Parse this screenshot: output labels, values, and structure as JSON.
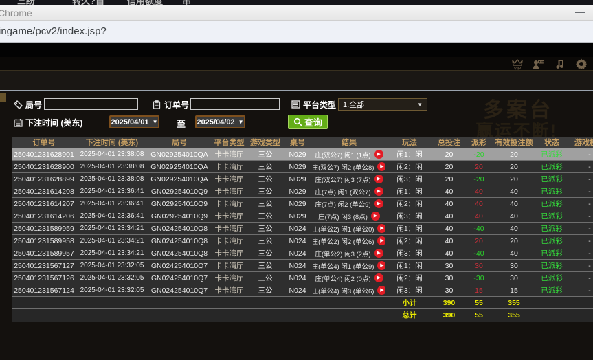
{
  "background_window": {
    "fragments": [
      "三纷",
      "转久?自",
      "信用额度",
      "串"
    ]
  },
  "titlebar": {
    "title": "Chrome",
    "minimize_glyph": "—"
  },
  "url_bar": {
    "url": "ingame/pcv2/index.jsp?"
  },
  "toolbar": {
    "icons": [
      "vip-crown",
      "chat-person",
      "music-note",
      "settings-gear"
    ],
    "vip_label": "VIP"
  },
  "watermarks": {
    "line1": "多案台",
    "line2": "赢运不断!"
  },
  "filters": {
    "round_label": "局号",
    "round_value": "",
    "order_label": "订单号",
    "order_value": "",
    "platform_label": "平台类型",
    "platform_value": "1.全部",
    "platform_arrow": "▼",
    "bet_time_label": "下注时间 (美东)",
    "date_from": "2025/04/01",
    "to_label": "至",
    "date_to": "2025/04/02",
    "date_arrow": "▼",
    "query_label": "查询"
  },
  "table": {
    "headers": [
      "订单号",
      "下注时间 (美东)",
      "局号",
      "平台类型",
      "游戏类型",
      "桌号",
      "结果",
      "玩法",
      "总投注",
      "派彩",
      "有效投注额",
      "状态",
      "游戏模式"
    ],
    "play_glyph": "▶",
    "rows": [
      {
        "selected": true,
        "order": "250401231628901",
        "time": "2025-04-01 23:38:08",
        "round": "GN029254010QA",
        "platform": "卡卡湾厅",
        "game_type": "三公",
        "table_no": "N029",
        "result": "庄(双公7) 闲1 (1点)",
        "play": "闲1：闲",
        "total_bet": "20",
        "payout": "-20",
        "valid_bet": "20",
        "status": "已派彩",
        "mode": "-"
      },
      {
        "selected": false,
        "order": "250401231628900",
        "time": "2025-04-01 23:38:08",
        "round": "GN029254010QA",
        "platform": "卡卡湾厅",
        "game_type": "三公",
        "table_no": "N029",
        "result": "庄(双公7) 闲2 (单公8)",
        "play": "闲2：闲",
        "total_bet": "20",
        "payout": "20",
        "valid_bet": "20",
        "status": "已派彩",
        "mode": "-"
      },
      {
        "selected": false,
        "order": "250401231628899",
        "time": "2025-04-01 23:38:08",
        "round": "GN029254010QA",
        "platform": "卡卡湾厅",
        "game_type": "三公",
        "table_no": "N029",
        "result": "庄(双公7) 闲3 (7点)",
        "play": "闲3：闲",
        "total_bet": "20",
        "payout": "-20",
        "valid_bet": "20",
        "status": "已派彩",
        "mode": "-"
      },
      {
        "selected": false,
        "order": "250401231614208",
        "time": "2025-04-01 23:36:41",
        "round": "GN029254010Q9",
        "platform": "卡卡湾厅",
        "game_type": "三公",
        "table_no": "N029",
        "result": "庄(7点) 闲1 (双公7)",
        "play": "闲1：闲",
        "total_bet": "40",
        "payout": "40",
        "valid_bet": "40",
        "status": "已派彩",
        "mode": "-"
      },
      {
        "selected": false,
        "order": "250401231614207",
        "time": "2025-04-01 23:36:41",
        "round": "GN029254010Q9",
        "platform": "卡卡湾厅",
        "game_type": "三公",
        "table_no": "N029",
        "result": "庄(7点) 闲2 (单公9)",
        "play": "闲2：闲",
        "total_bet": "40",
        "payout": "40",
        "valid_bet": "40",
        "status": "已派彩",
        "mode": "-"
      },
      {
        "selected": false,
        "order": "250401231614206",
        "time": "2025-04-01 23:36:41",
        "round": "GN029254010Q9",
        "platform": "卡卡湾厅",
        "game_type": "三公",
        "table_no": "N029",
        "result": "庄(7点) 闲3 (8点)",
        "play": "闲3：闲",
        "total_bet": "40",
        "payout": "40",
        "valid_bet": "40",
        "status": "已派彩",
        "mode": "-"
      },
      {
        "selected": false,
        "order": "250401231589959",
        "time": "2025-04-01 23:34:21",
        "round": "GN024254010Q8",
        "platform": "卡卡湾厅",
        "game_type": "三公",
        "table_no": "N024",
        "result": "庄(单公2) 闲1 (单公0)",
        "play": "闲1：闲",
        "total_bet": "40",
        "payout": "-40",
        "valid_bet": "40",
        "status": "已派彩",
        "mode": "-"
      },
      {
        "selected": false,
        "order": "250401231589958",
        "time": "2025-04-01 23:34:21",
        "round": "GN024254010Q8",
        "platform": "卡卡湾厅",
        "game_type": "三公",
        "table_no": "N024",
        "result": "庄(单公2) 闲2 (单公6)",
        "play": "闲2：闲",
        "total_bet": "40",
        "payout": "20",
        "valid_bet": "20",
        "status": "已派彩",
        "mode": "-"
      },
      {
        "selected": false,
        "order": "250401231589957",
        "time": "2025-04-01 23:34:21",
        "round": "GN024254010Q8",
        "platform": "卡卡湾厅",
        "game_type": "三公",
        "table_no": "N024",
        "result": "庄(单公2) 闲3 (2点)",
        "play": "闲3：闲",
        "total_bet": "40",
        "payout": "-40",
        "valid_bet": "40",
        "status": "已派彩",
        "mode": "-"
      },
      {
        "selected": false,
        "order": "250401231567127",
        "time": "2025-04-01 23:32:05",
        "round": "GN024254010Q7",
        "platform": "卡卡湾厅",
        "game_type": "三公",
        "table_no": "N024",
        "result": "庄(单公4) 闲1 (单公9)",
        "play": "闲1：闲",
        "total_bet": "30",
        "payout": "30",
        "valid_bet": "30",
        "status": "已派彩",
        "mode": "-"
      },
      {
        "selected": false,
        "order": "250401231567126",
        "time": "2025-04-01 23:32:05",
        "round": "GN024254010Q7",
        "platform": "卡卡湾厅",
        "game_type": "三公",
        "table_no": "N024",
        "result": "庄(单公4) 闲2 (0点)",
        "play": "闲2：闲",
        "total_bet": "30",
        "payout": "-30",
        "valid_bet": "30",
        "status": "已派彩",
        "mode": "-"
      },
      {
        "selected": false,
        "order": "250401231567124",
        "time": "2025-04-01 23:32:05",
        "round": "GN024254010Q7",
        "platform": "卡卡湾厅",
        "game_type": "三公",
        "table_no": "N024",
        "result": "庄(单公4) 闲3 (单公6)",
        "play": "闲3：闲",
        "total_bet": "30",
        "payout": "15",
        "valid_bet": "15",
        "status": "已派彩",
        "mode": "-"
      }
    ],
    "subtotal": {
      "label": "小计",
      "total_bet": "390",
      "payout": "55",
      "valid_bet": "355"
    },
    "total": {
      "label": "总计",
      "total_bet": "390",
      "payout": "55",
      "valid_bet": "355"
    }
  }
}
